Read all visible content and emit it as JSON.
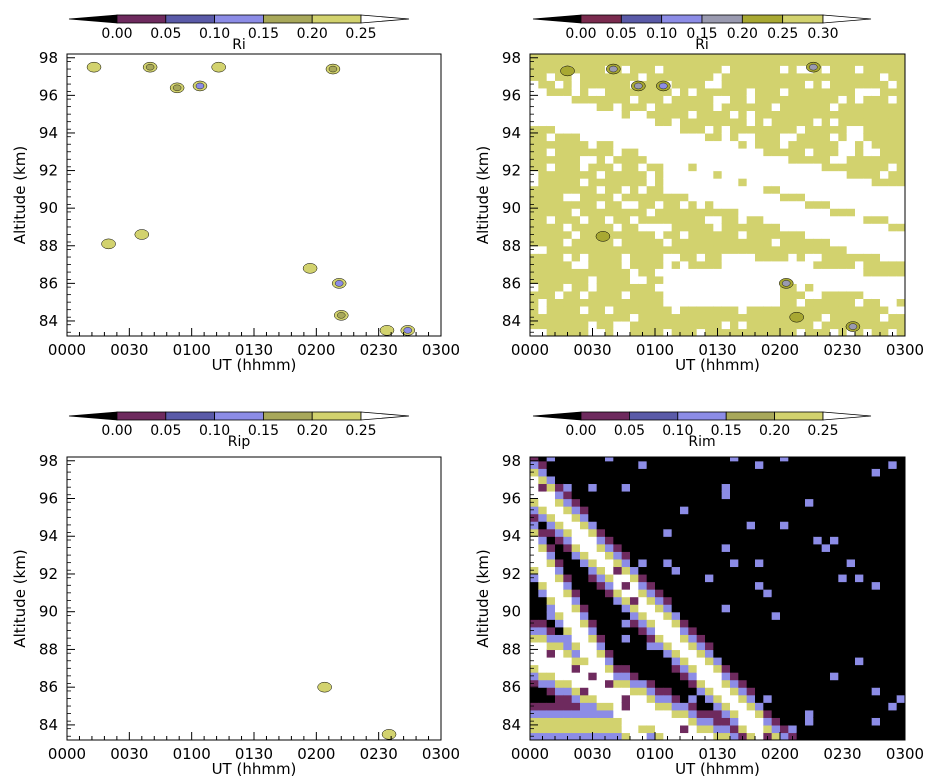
{
  "chart_data": [
    {
      "type": "heatmap",
      "title": "Ri",
      "xlabel": "UT (hhmm)",
      "ylabel": "Altitude (km)",
      "xlim": [
        0,
        180
      ],
      "ylim": [
        83.2,
        98.2
      ],
      "x_ticks": [
        "0000",
        "0030",
        "0100",
        "0130",
        "0200",
        "0230",
        "0300"
      ],
      "y_ticks": [
        "84",
        "86",
        "88",
        "90",
        "92",
        "94",
        "96",
        "98"
      ],
      "levels": [
        "0.00",
        "0.05",
        "0.10",
        "0.15",
        "0.20",
        "0.25"
      ],
      "colors": [
        "#000000",
        "#6e2a5e",
        "#5a5aa8",
        "#8c8ce6",
        "#a8a85a",
        "#d2d26e",
        "#ffffff"
      ],
      "patches": [
        {
          "t": 13,
          "h": 97.5,
          "level": 0.22
        },
        {
          "t": 40,
          "h": 97.5,
          "level": 0.18
        },
        {
          "t": 53,
          "h": 96.4,
          "level": 0.18
        },
        {
          "t": 64,
          "h": 96.5,
          "level": 0.13
        },
        {
          "t": 73,
          "h": 97.5,
          "level": 0.22
        },
        {
          "t": 128,
          "h": 97.4,
          "level": 0.18
        },
        {
          "t": 20,
          "h": 88.1,
          "level": 0.22
        },
        {
          "t": 36,
          "h": 88.6,
          "level": 0.22
        },
        {
          "t": 117,
          "h": 86.8,
          "level": 0.22
        },
        {
          "t": 131,
          "h": 86.0,
          "level": 0.13
        },
        {
          "t": 132,
          "h": 84.3,
          "level": 0.18
        },
        {
          "t": 164,
          "h": 83.5,
          "level": 0.13
        },
        {
          "t": 154,
          "h": 83.5,
          "level": 0.22
        }
      ]
    },
    {
      "type": "heatmap",
      "title": "Ri",
      "xlabel": "UT (hhmm)",
      "ylabel": "Altitude (km)",
      "xlim": [
        0,
        180
      ],
      "ylim": [
        83.2,
        98.2
      ],
      "x_ticks": [
        "0000",
        "0030",
        "0100",
        "0130",
        "0200",
        "0230",
        "0300"
      ],
      "y_ticks": [
        "84",
        "86",
        "88",
        "90",
        "92",
        "94",
        "96",
        "98"
      ],
      "levels": [
        "0.00",
        "0.05",
        "0.10",
        "0.15",
        "0.20",
        "0.25",
        "0.30"
      ],
      "colors": [
        "#000000",
        "#7a2a4e",
        "#5a5aa8",
        "#8c8ce6",
        "#9a9ab0",
        "#a8a832",
        "#d2d26e",
        "#ffffff"
      ],
      "dominant_level": 0.27,
      "patches": [
        {
          "t": 18,
          "h": 97.3,
          "level": 0.23
        },
        {
          "t": 40,
          "h": 97.4,
          "level": 0.18
        },
        {
          "t": 52,
          "h": 96.5,
          "level": 0.18
        },
        {
          "t": 64,
          "h": 96.5,
          "level": 0.13
        },
        {
          "t": 136,
          "h": 97.5,
          "level": 0.18
        },
        {
          "t": 128,
          "h": 84.2,
          "level": 0.23
        },
        {
          "t": 35,
          "h": 88.5,
          "level": 0.23
        },
        {
          "t": 123,
          "h": 86.0,
          "level": 0.18
        },
        {
          "t": 155,
          "h": 83.7,
          "level": 0.18
        }
      ]
    },
    {
      "type": "heatmap",
      "title": "Rip",
      "xlabel": "UT (hhmm)",
      "ylabel": "Altitude (km)",
      "xlim": [
        0,
        180
      ],
      "ylim": [
        83.2,
        98.2
      ],
      "x_ticks": [
        "0000",
        "0030",
        "0100",
        "0130",
        "0200",
        "0230",
        "0300"
      ],
      "y_ticks": [
        "84",
        "86",
        "88",
        "90",
        "92",
        "94",
        "96",
        "98"
      ],
      "levels": [
        "0.00",
        "0.05",
        "0.10",
        "0.15",
        "0.20",
        "0.25"
      ],
      "colors": [
        "#000000",
        "#6e2a5e",
        "#5a5aa8",
        "#8c8ce6",
        "#a8a85a",
        "#d2d26e",
        "#ffffff"
      ],
      "patches": [
        {
          "t": 124,
          "h": 86.0,
          "level": 0.22
        },
        {
          "t": 155,
          "h": 83.5,
          "level": 0.22
        }
      ]
    },
    {
      "type": "heatmap",
      "title": "Rim",
      "xlabel": "UT (hhmm)",
      "ylabel": "Altitude (km)",
      "xlim": [
        0,
        180
      ],
      "ylim": [
        83.2,
        98.2
      ],
      "x_ticks": [
        "0000",
        "0030",
        "0100",
        "0130",
        "0200",
        "0230",
        "0300"
      ],
      "y_ticks": [
        "84",
        "86",
        "88",
        "90",
        "92",
        "94",
        "96",
        "98"
      ],
      "levels": [
        "0.00",
        "0.05",
        "0.10",
        "0.15",
        "0.20",
        "0.25"
      ],
      "colors": [
        "#000000",
        "#6e2a5e",
        "#5a5aa8",
        "#8c8ce6",
        "#a8a85a",
        "#d2d26e",
        "#ffffff"
      ],
      "dominant_level": -0.1,
      "bands": [
        {
          "t0": 0,
          "t1": 180,
          "h0": 95.4,
          "h1": 97.6,
          "level": 0.3,
          "slope": -0.012
        },
        {
          "t0": 0,
          "t1": 160,
          "h0": 91.8,
          "h1": 94.6,
          "level": 0.3,
          "slope": -0.02
        },
        {
          "t0": 0,
          "t1": 180,
          "h0": 86.4,
          "h1": 89.0,
          "level": 0.3,
          "slope": -0.006
        },
        {
          "t0": 0,
          "t1": 50,
          "h0": 83.2,
          "h1": 84.4,
          "level": 0.3,
          "slope": 0
        }
      ]
    }
  ]
}
